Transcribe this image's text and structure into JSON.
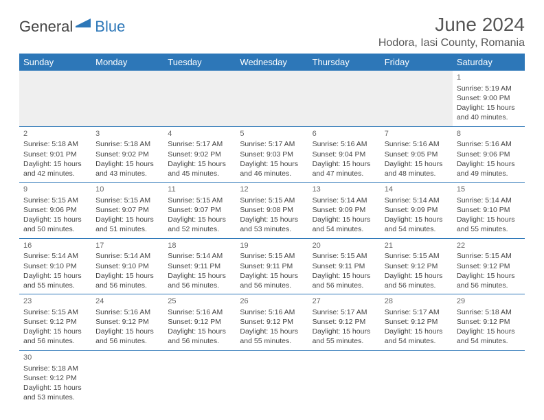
{
  "logo": {
    "text1": "General",
    "text2": "Blue",
    "color1": "#444444",
    "color2": "#2d77b8"
  },
  "title": "June 2024",
  "location": "Hodora, Iasi County, Romania",
  "theme": {
    "header_bg": "#2d77b8",
    "header_fg": "#ffffff",
    "rule": "#2d77b8",
    "blank_bg": "#efefef",
    "text": "#444444",
    "font_size_title": 28,
    "font_size_location": 16,
    "font_size_dayhead": 13,
    "font_size_cell": 10.5
  },
  "day_headers": [
    "Sunday",
    "Monday",
    "Tuesday",
    "Wednesday",
    "Thursday",
    "Friday",
    "Saturday"
  ],
  "weeks": [
    [
      null,
      null,
      null,
      null,
      null,
      null,
      {
        "n": "1",
        "sr": "Sunrise: 5:19 AM",
        "ss": "Sunset: 9:00 PM",
        "dl": "Daylight: 15 hours and 40 minutes."
      }
    ],
    [
      {
        "n": "2",
        "sr": "Sunrise: 5:18 AM",
        "ss": "Sunset: 9:01 PM",
        "dl": "Daylight: 15 hours and 42 minutes."
      },
      {
        "n": "3",
        "sr": "Sunrise: 5:18 AM",
        "ss": "Sunset: 9:02 PM",
        "dl": "Daylight: 15 hours and 43 minutes."
      },
      {
        "n": "4",
        "sr": "Sunrise: 5:17 AM",
        "ss": "Sunset: 9:02 PM",
        "dl": "Daylight: 15 hours and 45 minutes."
      },
      {
        "n": "5",
        "sr": "Sunrise: 5:17 AM",
        "ss": "Sunset: 9:03 PM",
        "dl": "Daylight: 15 hours and 46 minutes."
      },
      {
        "n": "6",
        "sr": "Sunrise: 5:16 AM",
        "ss": "Sunset: 9:04 PM",
        "dl": "Daylight: 15 hours and 47 minutes."
      },
      {
        "n": "7",
        "sr": "Sunrise: 5:16 AM",
        "ss": "Sunset: 9:05 PM",
        "dl": "Daylight: 15 hours and 48 minutes."
      },
      {
        "n": "8",
        "sr": "Sunrise: 5:16 AM",
        "ss": "Sunset: 9:06 PM",
        "dl": "Daylight: 15 hours and 49 minutes."
      }
    ],
    [
      {
        "n": "9",
        "sr": "Sunrise: 5:15 AM",
        "ss": "Sunset: 9:06 PM",
        "dl": "Daylight: 15 hours and 50 minutes."
      },
      {
        "n": "10",
        "sr": "Sunrise: 5:15 AM",
        "ss": "Sunset: 9:07 PM",
        "dl": "Daylight: 15 hours and 51 minutes."
      },
      {
        "n": "11",
        "sr": "Sunrise: 5:15 AM",
        "ss": "Sunset: 9:07 PM",
        "dl": "Daylight: 15 hours and 52 minutes."
      },
      {
        "n": "12",
        "sr": "Sunrise: 5:15 AM",
        "ss": "Sunset: 9:08 PM",
        "dl": "Daylight: 15 hours and 53 minutes."
      },
      {
        "n": "13",
        "sr": "Sunrise: 5:14 AM",
        "ss": "Sunset: 9:09 PM",
        "dl": "Daylight: 15 hours and 54 minutes."
      },
      {
        "n": "14",
        "sr": "Sunrise: 5:14 AM",
        "ss": "Sunset: 9:09 PM",
        "dl": "Daylight: 15 hours and 54 minutes."
      },
      {
        "n": "15",
        "sr": "Sunrise: 5:14 AM",
        "ss": "Sunset: 9:10 PM",
        "dl": "Daylight: 15 hours and 55 minutes."
      }
    ],
    [
      {
        "n": "16",
        "sr": "Sunrise: 5:14 AM",
        "ss": "Sunset: 9:10 PM",
        "dl": "Daylight: 15 hours and 55 minutes."
      },
      {
        "n": "17",
        "sr": "Sunrise: 5:14 AM",
        "ss": "Sunset: 9:10 PM",
        "dl": "Daylight: 15 hours and 56 minutes."
      },
      {
        "n": "18",
        "sr": "Sunrise: 5:14 AM",
        "ss": "Sunset: 9:11 PM",
        "dl": "Daylight: 15 hours and 56 minutes."
      },
      {
        "n": "19",
        "sr": "Sunrise: 5:15 AM",
        "ss": "Sunset: 9:11 PM",
        "dl": "Daylight: 15 hours and 56 minutes."
      },
      {
        "n": "20",
        "sr": "Sunrise: 5:15 AM",
        "ss": "Sunset: 9:11 PM",
        "dl": "Daylight: 15 hours and 56 minutes."
      },
      {
        "n": "21",
        "sr": "Sunrise: 5:15 AM",
        "ss": "Sunset: 9:12 PM",
        "dl": "Daylight: 15 hours and 56 minutes."
      },
      {
        "n": "22",
        "sr": "Sunrise: 5:15 AM",
        "ss": "Sunset: 9:12 PM",
        "dl": "Daylight: 15 hours and 56 minutes."
      }
    ],
    [
      {
        "n": "23",
        "sr": "Sunrise: 5:15 AM",
        "ss": "Sunset: 9:12 PM",
        "dl": "Daylight: 15 hours and 56 minutes."
      },
      {
        "n": "24",
        "sr": "Sunrise: 5:16 AM",
        "ss": "Sunset: 9:12 PM",
        "dl": "Daylight: 15 hours and 56 minutes."
      },
      {
        "n": "25",
        "sr": "Sunrise: 5:16 AM",
        "ss": "Sunset: 9:12 PM",
        "dl": "Daylight: 15 hours and 56 minutes."
      },
      {
        "n": "26",
        "sr": "Sunrise: 5:16 AM",
        "ss": "Sunset: 9:12 PM",
        "dl": "Daylight: 15 hours and 55 minutes."
      },
      {
        "n": "27",
        "sr": "Sunrise: 5:17 AM",
        "ss": "Sunset: 9:12 PM",
        "dl": "Daylight: 15 hours and 55 minutes."
      },
      {
        "n": "28",
        "sr": "Sunrise: 5:17 AM",
        "ss": "Sunset: 9:12 PM",
        "dl": "Daylight: 15 hours and 54 minutes."
      },
      {
        "n": "29",
        "sr": "Sunrise: 5:18 AM",
        "ss": "Sunset: 9:12 PM",
        "dl": "Daylight: 15 hours and 54 minutes."
      }
    ],
    [
      {
        "n": "30",
        "sr": "Sunrise: 5:18 AM",
        "ss": "Sunset: 9:12 PM",
        "dl": "Daylight: 15 hours and 53 minutes."
      },
      null,
      null,
      null,
      null,
      null,
      null
    ]
  ]
}
